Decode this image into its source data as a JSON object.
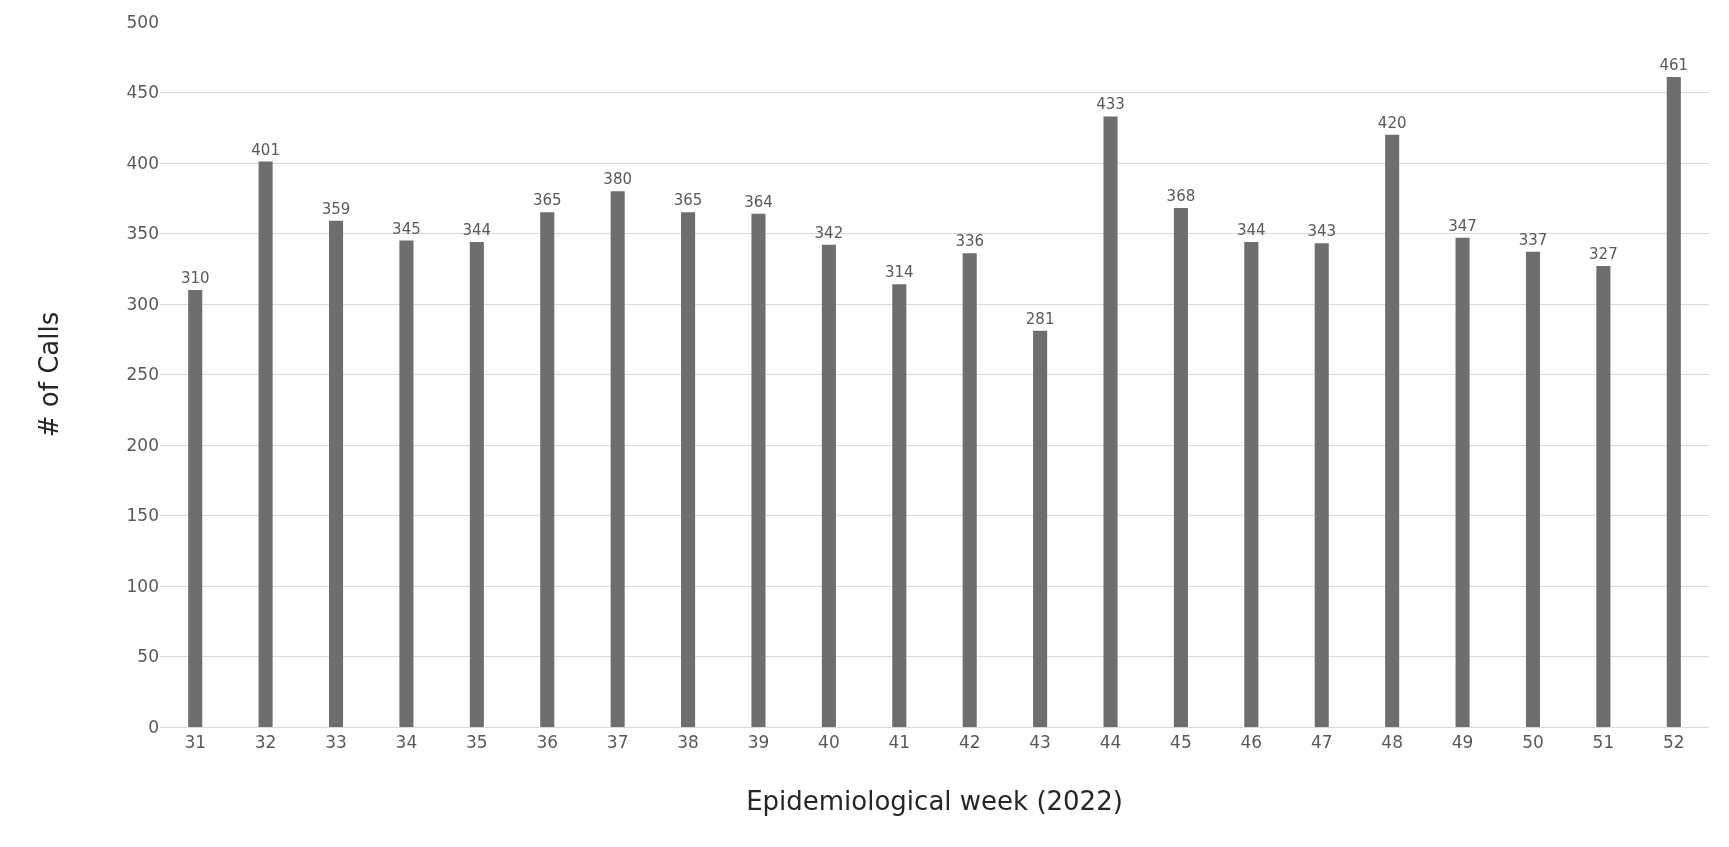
{
  "chart_data": {
    "type": "bar",
    "xlabel": "Epidemiological week (2022)",
    "ylabel": "# of Calls",
    "categories": [
      "31",
      "32",
      "33",
      "34",
      "35",
      "36",
      "37",
      "38",
      "39",
      "40",
      "41",
      "42",
      "43",
      "44",
      "45",
      "46",
      "47",
      "48",
      "49",
      "50",
      "51",
      "52"
    ],
    "values": [
      310,
      401,
      359,
      345,
      344,
      365,
      380,
      365,
      364,
      342,
      314,
      336,
      281,
      433,
      368,
      344,
      343,
      420,
      347,
      337,
      327,
      461
    ],
    "color": "#6e6e6e",
    "data_labels": true,
    "ylim": [
      0,
      500
    ],
    "yticks": [
      0,
      50,
      100,
      150,
      200,
      250,
      300,
      350,
      400,
      450,
      500
    ],
    "grid": "y",
    "legend": false
  }
}
